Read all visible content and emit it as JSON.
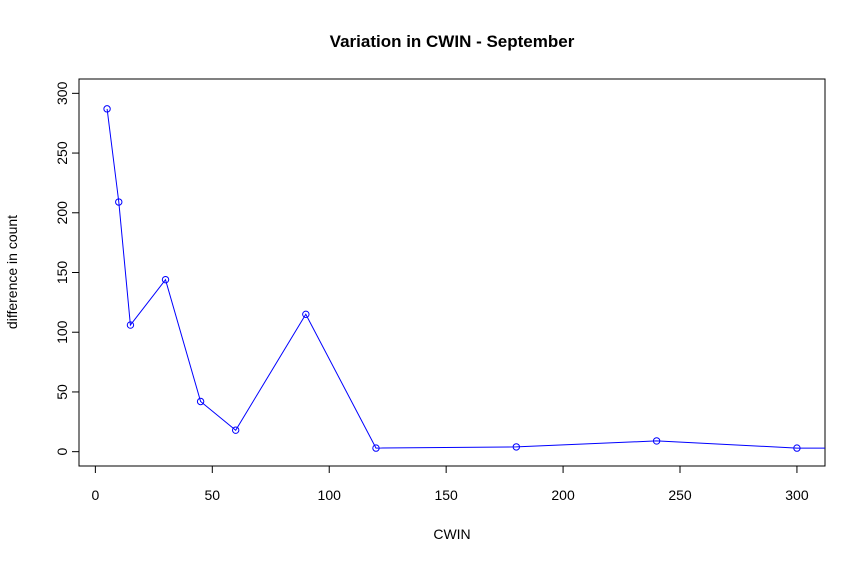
{
  "chart_data": {
    "type": "line",
    "title": "Variation in CWIN - September",
    "xlabel": "CWIN",
    "ylabel": "difference in count",
    "xlim": [
      -7,
      312
    ],
    "ylim": [
      -12,
      312
    ],
    "x_ticks": [
      0,
      50,
      100,
      150,
      200,
      250,
      300
    ],
    "y_ticks": [
      0,
      50,
      100,
      150,
      200,
      250,
      300
    ],
    "grid": false,
    "legend": "none",
    "series": [
      {
        "color": "#0000ff",
        "marker": "open-circle",
        "x": [
          5,
          10,
          15,
          30,
          45,
          60,
          90,
          120,
          180,
          240,
          300,
          330
        ],
        "y": [
          287,
          209,
          106,
          144,
          42,
          18,
          115,
          3,
          4,
          9,
          3,
          3
        ]
      }
    ]
  }
}
